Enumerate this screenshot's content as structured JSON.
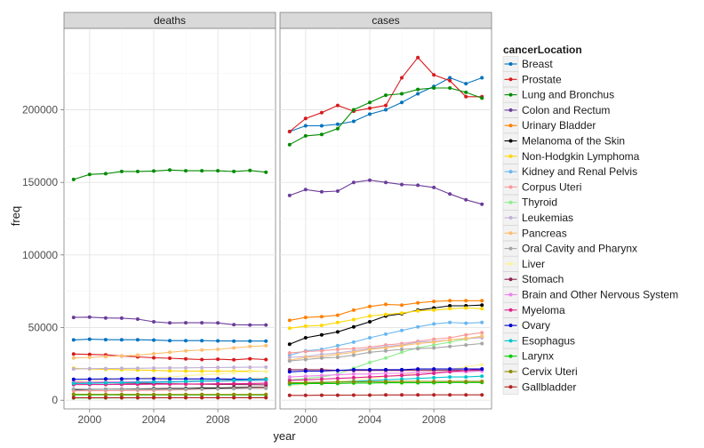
{
  "chart_data": {
    "type": "line",
    "xlabel": "year",
    "ylabel": "freq",
    "x_ticks": [
      2000,
      2004,
      2008
    ],
    "y_ticks": [
      0,
      50000,
      100000,
      150000,
      200000
    ],
    "y_tick_labels": [
      "0",
      "50000",
      "100000",
      "150000",
      "200000"
    ],
    "xlim": [
      1998.4,
      2011.6
    ],
    "ylim": [
      -6000,
      256000
    ],
    "legend_title": "cancerLocation",
    "legend_position": "right",
    "grid": true,
    "panels": [
      {
        "label": "deaths",
        "x": [
          1999,
          2000,
          2001,
          2002,
          2003,
          2004,
          2005,
          2006,
          2007,
          2008,
          2009,
          2010,
          2011
        ],
        "series": [
          {
            "name": "Breast",
            "color": "#0072bd",
            "values": [
              41500,
              42000,
              41700,
              41600,
              41600,
              41400,
              41000,
              41000,
              41000,
              40800,
              40700,
              40700,
              40700
            ]
          },
          {
            "name": "Prostate",
            "color": "#d7191c",
            "values": [
              31800,
              31500,
              31200,
              30400,
              29800,
              29200,
              28900,
              28400,
              28000,
              28200,
              27800,
              28500,
              28000
            ]
          },
          {
            "name": "Lung and Bronchus",
            "color": "#008b00",
            "values": [
              152000,
              155500,
              156000,
              157500,
              157500,
              157800,
              158500,
              158000,
              158000,
              158000,
              157500,
              158200,
              157000
            ]
          },
          {
            "name": "Colon and Rectum",
            "color": "#6a3d9a",
            "values": [
              57000,
              57200,
              56600,
              56500,
              55800,
              54000,
              53200,
              53300,
              53300,
              53200,
              52000,
              51800,
              51800
            ]
          },
          {
            "name": "Urinary Bladder",
            "color": "#ff7f00",
            "values": [
              12000,
              12000,
              12200,
              12500,
              12500,
              12700,
              12800,
              13000,
              13300,
              13500,
              14000,
              14500,
              14800
            ]
          },
          {
            "name": "Melanoma of the Skin",
            "color": "#000000",
            "values": [
              7300,
              7400,
              7500,
              7600,
              7800,
              7900,
              8000,
              8100,
              8300,
              8400,
              8600,
              8800,
              9000
            ]
          },
          {
            "name": "Non-Hodgkin Lymphoma",
            "color": "#ffd700",
            "values": [
              22000,
              21500,
              21200,
              21000,
              20800,
              20500,
              20200,
              20000,
              20000,
              20000,
              20000,
              20000,
              19900
            ]
          },
          {
            "name": "Kidney and Renal Pelvis",
            "color": "#6bb7ef",
            "values": [
              11500,
              11600,
              11800,
              11900,
              12000,
              12200,
              12400,
              12600,
              12900,
              13000,
              13200,
              13300,
              13500
            ]
          },
          {
            "name": "Corpus Uteri",
            "color": "#fb9a99",
            "values": [
              6400,
              6500,
              6500,
              6600,
              6700,
              6800,
              7000,
              7200,
              7500,
              7800,
              8000,
              8300,
              8600
            ]
          },
          {
            "name": "Thyroid",
            "color": "#90ee90",
            "values": [
              1300,
              1350,
              1400,
              1450,
              1500,
              1550,
              1600,
              1650,
              1700,
              1750,
              1800,
              1850,
              1900
            ]
          },
          {
            "name": "Leukemias",
            "color": "#c0b0d8",
            "values": [
              21500,
              21700,
              21800,
              21900,
              22000,
              22100,
              22200,
              22300,
              22400,
              22500,
              22600,
              22700,
              22800
            ]
          },
          {
            "name": "Pancreas",
            "color": "#fdbf6f",
            "values": [
              29000,
              29500,
              30000,
              30500,
              31000,
              32000,
              33000,
              34000,
              34500,
              35000,
              36000,
              37000,
              37500
            ]
          },
          {
            "name": "Oral Cavity and Pharynx",
            "color": "#a6a6a6",
            "values": [
              7700,
              7600,
              7500,
              7500,
              7500,
              7500,
              7600,
              7600,
              7700,
              7800,
              7900,
              8000,
              8100
            ]
          },
          {
            "name": "Liver",
            "color": "#fff3a0",
            "values": [
              13000,
              13500,
              14000,
              14500,
              15000,
              15500,
              16000,
              16800,
              17500,
              18000,
              19000,
              19500,
              20000
            ]
          },
          {
            "name": "Stomach",
            "color": "#8b2252",
            "values": [
              12500,
              12300,
              12000,
              11800,
              11600,
              11400,
              11300,
              11200,
              11000,
              10900,
              10800,
              10700,
              10600
            ]
          },
          {
            "name": "Brain and Other Nervous System",
            "color": "#ee82ee",
            "values": [
              12500,
              12500,
              12600,
              12700,
              12800,
              12800,
              12900,
              13000,
              13100,
              13200,
              13500,
              13800,
              14000
            ]
          },
          {
            "name": "Myeloma",
            "color": "#e0218a",
            "values": [
              10700,
              10800,
              10800,
              10900,
              10900,
              11000,
              11000,
              11100,
              11200,
              11300,
              11400,
              11500,
              11700
            ]
          },
          {
            "name": "Ovary",
            "color": "#0000cd",
            "values": [
              14300,
              14500,
              14600,
              14700,
              14800,
              14800,
              14700,
              14600,
              14600,
              14600,
              14500,
              14500,
              14400
            ]
          },
          {
            "name": "Esophagus",
            "color": "#00c5cd",
            "values": [
              11500,
              11700,
              11900,
              12100,
              12300,
              12500,
              12700,
              13000,
              13200,
              13500,
              13800,
              14000,
              14300
            ]
          },
          {
            "name": "Larynx",
            "color": "#00cd00",
            "values": [
              3700,
              3700,
              3700,
              3600,
              3600,
              3600,
              3600,
              3600,
              3600,
              3600,
              3600,
              3600,
              3600
            ]
          },
          {
            "name": "Cervix Uteri",
            "color": "#8b8b00",
            "values": [
              4100,
              4100,
              4000,
              4000,
              4000,
              3900,
              3900,
              3900,
              3900,
              3900,
              3900,
              3900,
              3900
            ]
          },
          {
            "name": "Gallbladder",
            "color": "#b22222",
            "values": [
              1700,
              1700,
              1700,
              1700,
              1700,
              1700,
              1700,
              1700,
              1700,
              1700,
              1700,
              1700,
              1700
            ]
          }
        ]
      },
      {
        "label": "cases",
        "x": [
          1999,
          2000,
          2001,
          2002,
          2003,
          2004,
          2005,
          2006,
          2007,
          2008,
          2009,
          2010,
          2011
        ],
        "series": [
          {
            "name": "Breast",
            "color": "#0072bd",
            "values": [
              185000,
              189000,
              189000,
              190000,
              192000,
              197000,
              200000,
              205000,
              211000,
              216000,
              222000,
              218000,
              222000
            ]
          },
          {
            "name": "Prostate",
            "color": "#d7191c",
            "values": [
              185000,
              194000,
              198000,
              203000,
              199000,
              201000,
              203000,
              222000,
              236000,
              224000,
              220000,
              209000,
              209000
            ]
          },
          {
            "name": "Lung and Bronchus",
            "color": "#008b00",
            "values": [
              176000,
              182000,
              183000,
              187000,
              200000,
              205000,
              210000,
              211000,
              214000,
              215000,
              215000,
              212000,
              208000
            ]
          },
          {
            "name": "Colon and Rectum",
            "color": "#6a3d9a",
            "values": [
              141000,
              145000,
              143500,
              144000,
              150000,
              151500,
              150000,
              148500,
              148000,
              146500,
              142000,
              138000,
              135000
            ]
          },
          {
            "name": "Urinary Bladder",
            "color": "#ff7f00",
            "values": [
              55000,
              57000,
              57500,
              58500,
              62000,
              64500,
              66000,
              65500,
              67000,
              68000,
              68500,
              68500,
              68500
            ]
          },
          {
            "name": "Melanoma of the Skin",
            "color": "#000000",
            "values": [
              38500,
              43000,
              45000,
              47000,
              50500,
              54000,
              58000,
              59500,
              62000,
              63500,
              65000,
              65000,
              65500
            ]
          },
          {
            "name": "Non-Hodgkin Lymphoma",
            "color": "#ffd700",
            "values": [
              49500,
              51000,
              51500,
              53500,
              55500,
              58000,
              59000,
              60000,
              61500,
              62000,
              63000,
              63500,
              63000
            ]
          },
          {
            "name": "Kidney and Renal Pelvis",
            "color": "#6bb7ef",
            "values": [
              31000,
              34000,
              35000,
              37500,
              40000,
              43000,
              45500,
              48000,
              50500,
              52500,
              53500,
              53000,
              53500
            ]
          },
          {
            "name": "Corpus Uteri",
            "color": "#fb9a99",
            "values": [
              32500,
              33500,
              34000,
              35000,
              35500,
              36500,
              38000,
              39000,
              40500,
              42000,
              43000,
              45000,
              46500
            ]
          },
          {
            "name": "Thyroid",
            "color": "#90ee90",
            "values": [
              14000,
              15000,
              16000,
              18000,
              22000,
              26000,
              29000,
              33000,
              36000,
              38000,
              40000,
              42000,
              44000
            ]
          },
          {
            "name": "Leukemias",
            "color": "#c0b0d8",
            "values": [
              29500,
              30000,
              31500,
              32500,
              34000,
              35500,
              37000,
              38000,
              40000,
              40500,
              41500,
              42500,
              43000
            ]
          },
          {
            "name": "Pancreas",
            "color": "#fdbf6f",
            "values": [
              27500,
              29500,
              30000,
              31500,
              33000,
              35000,
              36000,
              37500,
              39000,
              40000,
              41500,
              42500,
              44000
            ]
          },
          {
            "name": "Oral Cavity and Pharynx",
            "color": "#a6a6a6",
            "values": [
              27000,
              28000,
              29000,
              29500,
              31000,
              33000,
              34000,
              35000,
              35500,
              36000,
              37000,
              38000,
              39000
            ]
          },
          {
            "name": "Liver",
            "color": "#fff3a0",
            "values": [
              10000,
              11000,
              12000,
              13000,
              14000,
              15000,
              16000,
              17500,
              18500,
              20000,
              21000,
              23000,
              24500
            ]
          },
          {
            "name": "Stomach",
            "color": "#8b2252",
            "values": [
              21000,
              21000,
              21000,
              20500,
              20500,
              20500,
              20500,
              20500,
              20500,
              20500,
              20500,
              20500,
              20500
            ]
          },
          {
            "name": "Brain and Other Nervous System",
            "color": "#ee82ee",
            "values": [
              16000,
              16500,
              17000,
              17500,
              18000,
              18000,
              18500,
              18500,
              19000,
              19000,
              19500,
              19500,
              20000
            ]
          },
          {
            "name": "Myeloma",
            "color": "#e0218a",
            "values": [
              13500,
              14000,
              14500,
              15000,
              15500,
              16000,
              16500,
              17000,
              17500,
              18500,
              19500,
              20500,
              21500
            ]
          },
          {
            "name": "Ovary",
            "color": "#0000cd",
            "values": [
              19500,
              20000,
              20000,
              20500,
              21000,
              21000,
              21000,
              21000,
              21500,
              21500,
              21500,
              21500,
              21500
            ]
          },
          {
            "name": "Esophagus",
            "color": "#00c5cd",
            "values": [
              11000,
              11500,
              12000,
              12500,
              13000,
              13500,
              14000,
              14500,
              15000,
              15500,
              16000,
              16000,
              16500
            ]
          },
          {
            "name": "Larynx",
            "color": "#00cd00",
            "values": [
              11500,
              11500,
              11500,
              11500,
              11800,
              11800,
              12000,
              12000,
              12000,
              12000,
              12200,
              12200,
              12200
            ]
          },
          {
            "name": "Cervix Uteri",
            "color": "#8b8b00",
            "values": [
              12000,
              12200,
              12300,
              12500,
              12700,
              12800,
              12800,
              12900,
              12900,
              12900,
              12900,
              12900,
              12900
            ]
          },
          {
            "name": "Gallbladder",
            "color": "#b22222",
            "values": [
              3300,
              3300,
              3400,
              3400,
              3500,
              3500,
              3600,
              3600,
              3600,
              3700,
              3700,
              3700,
              3700
            ]
          }
        ]
      }
    ]
  }
}
